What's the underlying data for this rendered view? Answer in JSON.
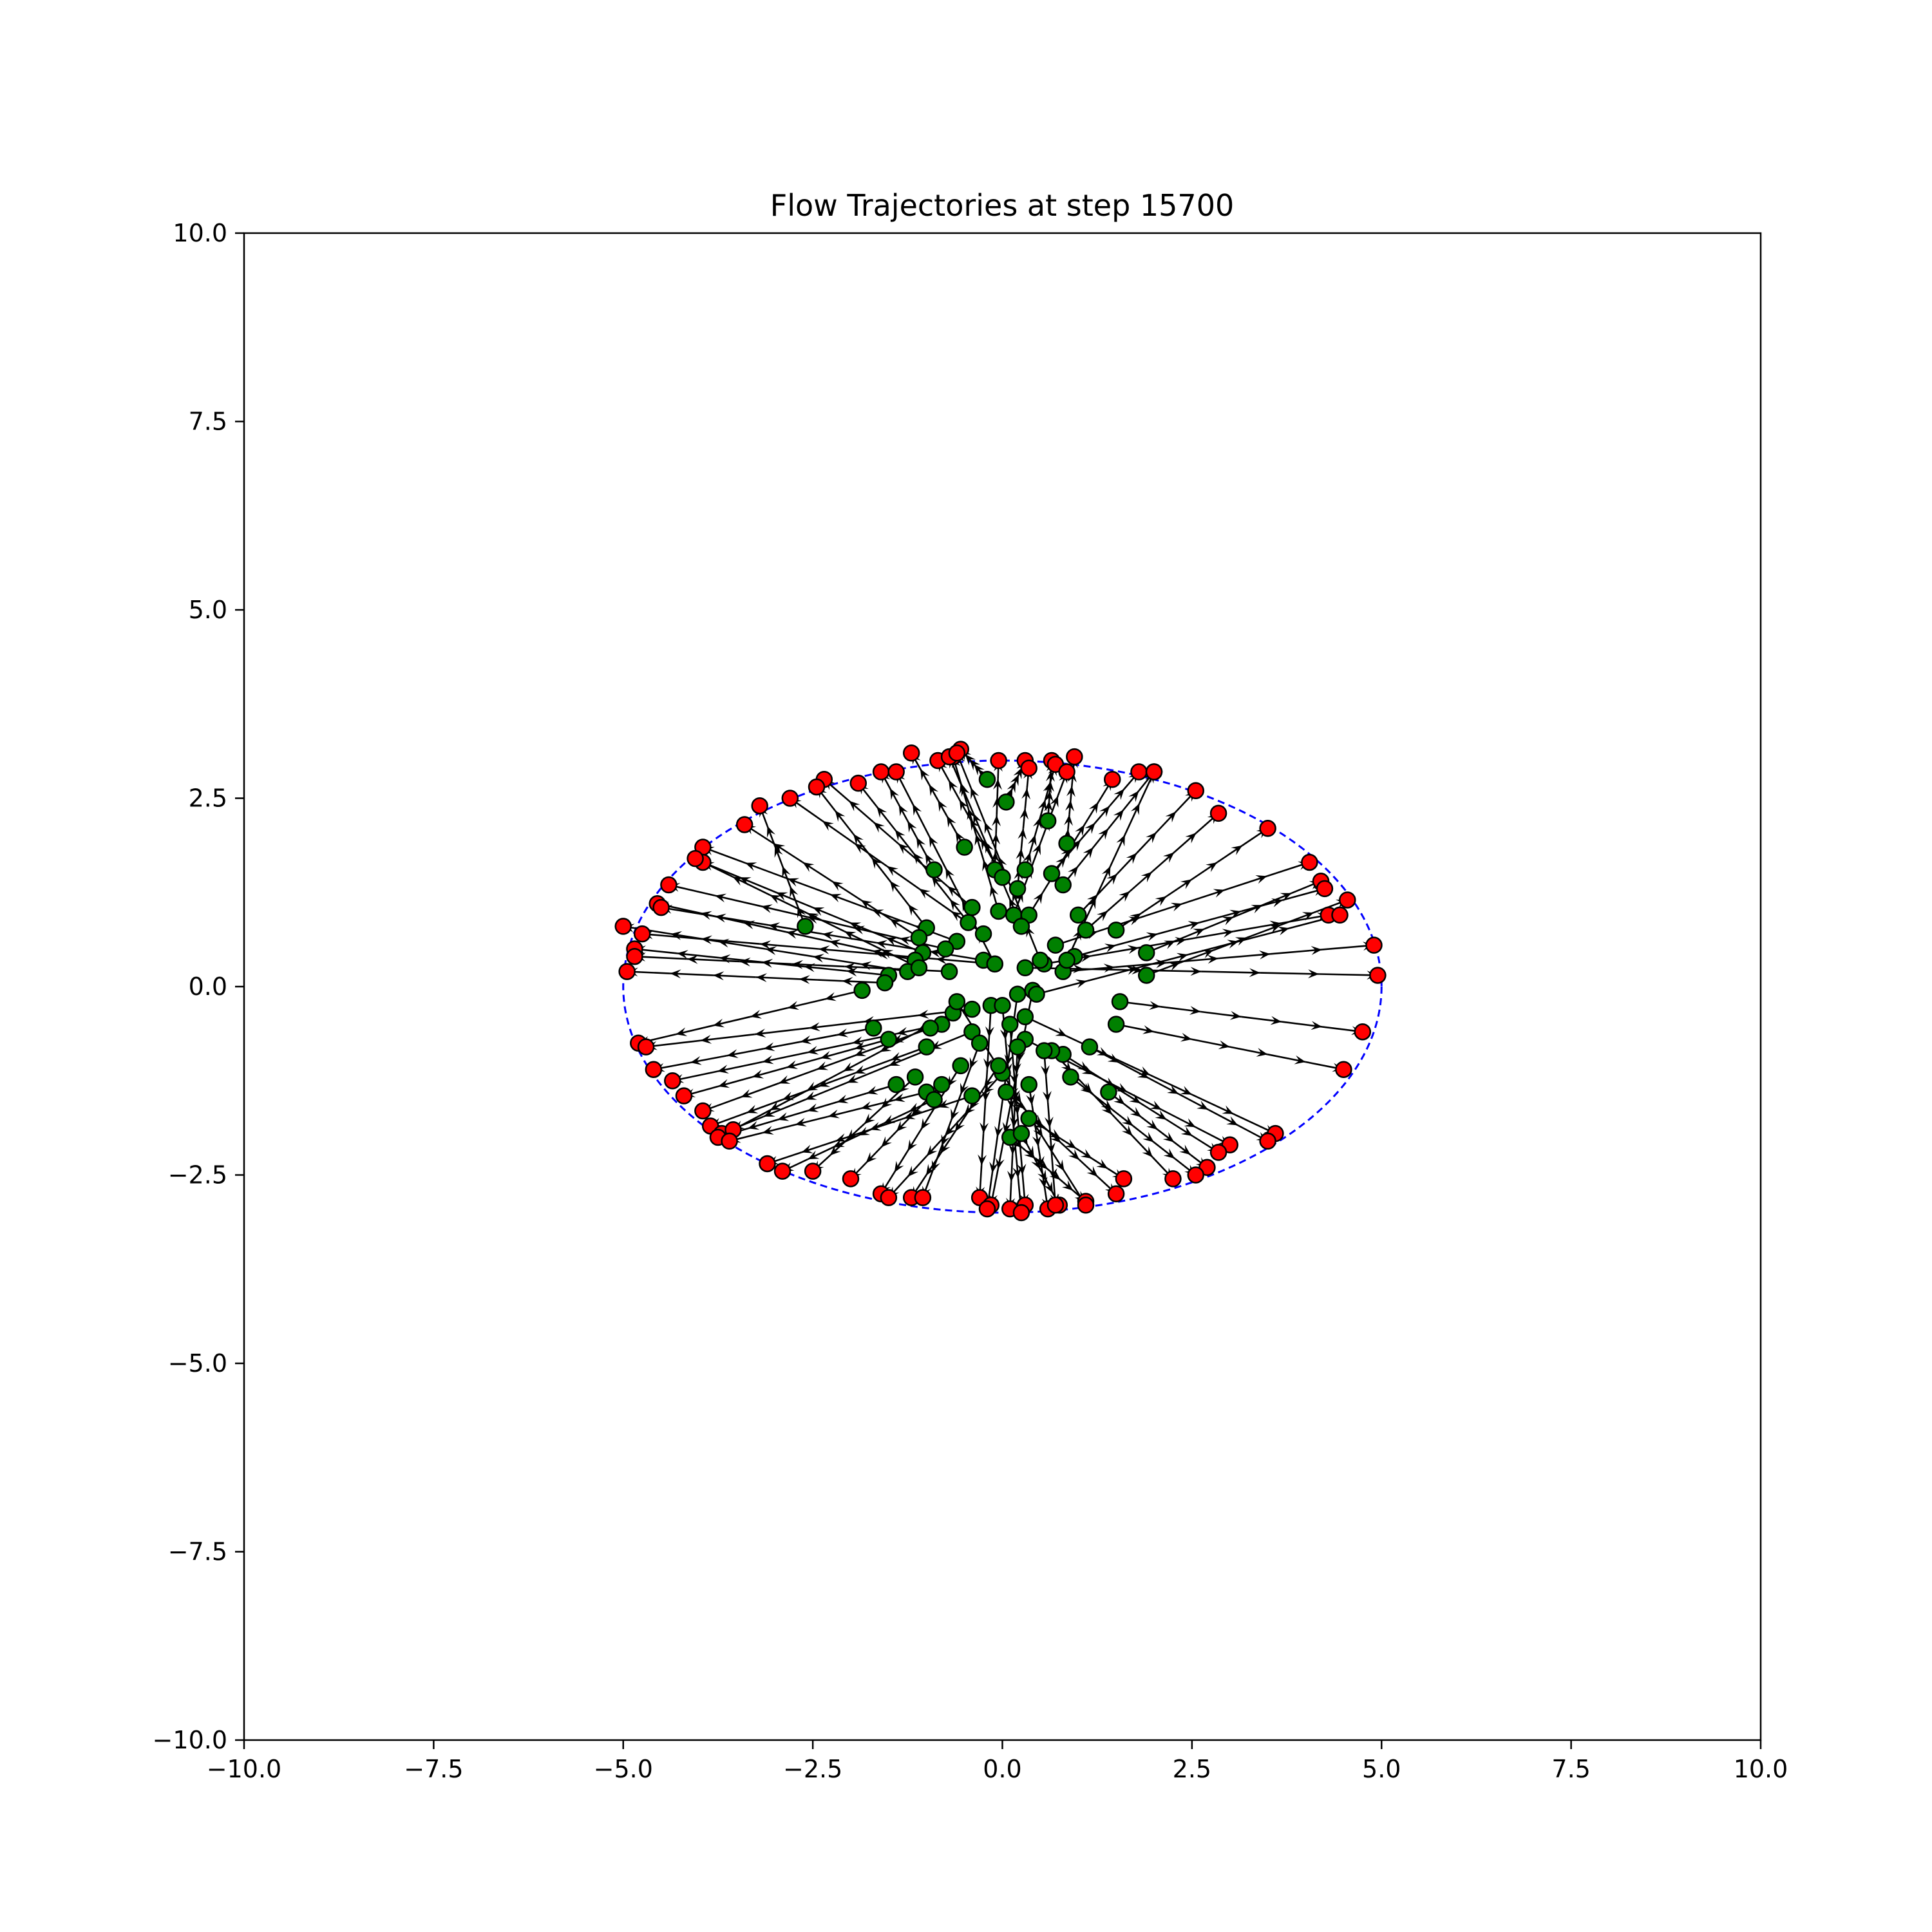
{
  "chart_data": {
    "type": "scatter",
    "title": "Flow Trajectories at step 15700",
    "xlabel": "",
    "ylabel": "",
    "xlim": [
      -10,
      10
    ],
    "ylim": [
      -10,
      10
    ],
    "xticks": [
      -10,
      -7.5,
      -5,
      -2.5,
      0,
      2.5,
      5,
      7.5,
      10
    ],
    "yticks": [
      -10,
      -7.5,
      -5,
      -2.5,
      0,
      2.5,
      5,
      7.5,
      10
    ],
    "xtick_labels": [
      "−10.0",
      "−7.5",
      "−5.0",
      "−2.5",
      "0.0",
      "2.5",
      "5.0",
      "7.5",
      "10.0"
    ],
    "ytick_labels": [
      "−10.0",
      "−7.5",
      "−5.0",
      "−2.5",
      "0.0",
      "2.5",
      "5.0",
      "7.5",
      "10.0"
    ],
    "grid": false,
    "colors": {
      "start": "#008000",
      "end": "#ff0000",
      "arrow": "#000000",
      "ellipse": "#0000ff"
    },
    "ellipse": {
      "center": [
        0,
        0
      ],
      "rx": 5,
      "ry": 3,
      "style": "dashed"
    },
    "arrow_steps": 6,
    "trajectories": [
      {
        "start": [
          -0.2,
          2.75
        ],
        "end": [
          -0.55,
          3.15
        ]
      },
      {
        "start": [
          0.05,
          2.45
        ],
        "end": [
          0.3,
          3.0
        ]
      },
      {
        "start": [
          0.6,
          2.2
        ],
        "end": [
          0.65,
          3.0
        ]
      },
      {
        "start": [
          0.85,
          1.9
        ],
        "end": [
          0.95,
          3.05
        ]
      },
      {
        "start": [
          -0.5,
          1.85
        ],
        "end": [
          -1.2,
          3.1
        ]
      },
      {
        "start": [
          -0.1,
          1.55
        ],
        "end": [
          -0.05,
          3.0
        ]
      },
      {
        "start": [
          0.3,
          1.55
        ],
        "end": [
          0.7,
          2.95
        ]
      },
      {
        "start": [
          0.65,
          1.5
        ],
        "end": [
          1.8,
          2.85
        ]
      },
      {
        "start": [
          -0.9,
          1.55
        ],
        "end": [
          -1.6,
          2.85
        ]
      },
      {
        "start": [
          0.0,
          1.45
        ],
        "end": [
          -0.85,
          3.0
        ]
      },
      {
        "start": [
          0.2,
          1.3
        ],
        "end": [
          0.35,
          2.9
        ]
      },
      {
        "start": [
          0.8,
          1.35
        ],
        "end": [
          2.0,
          2.85
        ]
      },
      {
        "start": [
          -0.4,
          1.05
        ],
        "end": [
          -2.35,
          2.75
        ]
      },
      {
        "start": [
          0.15,
          0.95
        ],
        "end": [
          0.85,
          2.85
        ]
      },
      {
        "start": [
          -0.05,
          1.0
        ],
        "end": [
          -0.65,
          3.05
        ]
      },
      {
        "start": [
          0.35,
          0.95
        ],
        "end": [
          1.45,
          2.75
        ]
      },
      {
        "start": [
          -0.45,
          0.85
        ],
        "end": [
          -1.9,
          2.7
        ]
      },
      {
        "start": [
          0.25,
          0.8
        ],
        "end": [
          -0.7,
          3.05
        ]
      },
      {
        "start": [
          1.0,
          0.95
        ],
        "end": [
          2.55,
          2.6
        ]
      },
      {
        "start": [
          -0.25,
          0.7
        ],
        "end": [
          -2.8,
          2.5
        ]
      },
      {
        "start": [
          1.1,
          0.75
        ],
        "end": [
          2.85,
          2.3
        ]
      },
      {
        "start": [
          -1.0,
          0.78
        ],
        "end": [
          -2.45,
          2.65
        ]
      },
      {
        "start": [
          1.5,
          0.75
        ],
        "end": [
          3.5,
          2.1
        ]
      },
      {
        "start": [
          -2.6,
          0.8
        ],
        "end": [
          -3.2,
          2.4
        ]
      },
      {
        "start": [
          -1.1,
          0.65
        ],
        "end": [
          -3.4,
          2.15
        ]
      },
      {
        "start": [
          0.7,
          0.55
        ],
        "end": [
          4.05,
          1.65
        ]
      },
      {
        "start": [
          1.9,
          0.45
        ],
        "end": [
          4.2,
          1.4
        ]
      },
      {
        "start": [
          -0.6,
          0.6
        ],
        "end": [
          -3.95,
          1.85
        ]
      },
      {
        "start": [
          -1.05,
          0.45
        ],
        "end": [
          -3.95,
          1.65
        ]
      },
      {
        "start": [
          0.95,
          0.4
        ],
        "end": [
          4.25,
          1.3
        ]
      },
      {
        "start": [
          -0.75,
          0.5
        ],
        "end": [
          -4.4,
          1.35
        ]
      },
      {
        "start": [
          1.9,
          0.15
        ],
        "end": [
          4.55,
          1.15
        ]
      },
      {
        "start": [
          -1.15,
          0.35
        ],
        "end": [
          -4.55,
          1.1
        ]
      },
      {
        "start": [
          0.55,
          0.3
        ],
        "end": [
          4.3,
          0.95
        ]
      },
      {
        "start": [
          -0.25,
          0.35
        ],
        "end": [
          -4.5,
          1.05
        ]
      },
      {
        "start": [
          -1.25,
          0.2
        ],
        "end": [
          -5.0,
          0.8
        ]
      },
      {
        "start": [
          0.8,
          0.2
        ],
        "end": [
          4.9,
          0.55
        ]
      },
      {
        "start": [
          -0.1,
          0.3
        ],
        "end": [
          -4.75,
          0.7
        ]
      },
      {
        "start": [
          -1.5,
          0.15
        ],
        "end": [
          -4.85,
          0.5
        ]
      },
      {
        "start": [
          0.3,
          0.25
        ],
        "end": [
          4.95,
          0.15
        ]
      },
      {
        "start": [
          -0.7,
          0.2
        ],
        "end": [
          -4.85,
          0.4
        ]
      },
      {
        "start": [
          -1.55,
          0.05
        ],
        "end": [
          -4.95,
          0.2
        ]
      },
      {
        "start": [
          -1.85,
          -0.05
        ],
        "end": [
          -4.8,
          -0.75
        ]
      },
      {
        "start": [
          1.55,
          -0.2
        ],
        "end": [
          4.75,
          -0.6
        ]
      },
      {
        "start": [
          -0.4,
          -0.3
        ],
        "end": [
          -4.7,
          -0.8
        ]
      },
      {
        "start": [
          1.5,
          -0.5
        ],
        "end": [
          4.5,
          -1.1
        ]
      },
      {
        "start": [
          -1.7,
          -0.55
        ],
        "end": [
          -4.6,
          -1.1
        ]
      },
      {
        "start": [
          -0.8,
          -0.5
        ],
        "end": [
          -4.35,
          -1.25
        ]
      },
      {
        "start": [
          0.3,
          -0.4
        ],
        "end": [
          3.6,
          -1.95
        ]
      },
      {
        "start": [
          -1.5,
          -0.7
        ],
        "end": [
          -4.2,
          -1.45
        ]
      },
      {
        "start": [
          -0.95,
          -0.55
        ],
        "end": [
          -3.95,
          -1.65
        ]
      },
      {
        "start": [
          1.15,
          -0.8
        ],
        "end": [
          3.5,
          -2.05
        ]
      },
      {
        "start": [
          -1.0,
          -0.8
        ],
        "end": [
          -3.85,
          -1.85
        ]
      },
      {
        "start": [
          -0.4,
          -0.6
        ],
        "end": [
          -3.7,
          -1.95
        ]
      },
      {
        "start": [
          0.3,
          -0.7
        ],
        "end": [
          3.0,
          -2.1
        ]
      },
      {
        "start": [
          -0.65,
          -0.35
        ],
        "end": [
          -3.55,
          -1.9
        ]
      },
      {
        "start": [
          0.8,
          -0.9
        ],
        "end": [
          2.85,
          -2.2
        ]
      },
      {
        "start": [
          -1.4,
          -1.3
        ],
        "end": [
          -3.75,
          -2.0
        ]
      },
      {
        "start": [
          1.4,
          -1.4
        ],
        "end": [
          2.7,
          -2.4
        ]
      },
      {
        "start": [
          -1.0,
          -1.4
        ],
        "end": [
          -3.6,
          -2.05
        ]
      },
      {
        "start": [
          0.9,
          -1.2
        ],
        "end": [
          2.55,
          -2.5
        ]
      },
      {
        "start": [
          -0.4,
          -1.45
        ],
        "end": [
          -3.1,
          -2.35
        ]
      },
      {
        "start": [
          0.65,
          -0.85
        ],
        "end": [
          2.25,
          -2.55
        ]
      },
      {
        "start": [
          -0.9,
          -1.5
        ],
        "end": [
          -2.9,
          -2.45
        ]
      },
      {
        "start": [
          0.35,
          -1.75
        ],
        "end": [
          1.6,
          -2.55
        ]
      },
      {
        "start": [
          -1.15,
          -1.2
        ],
        "end": [
          -2.5,
          -2.45
        ]
      },
      {
        "start": [
          0.05,
          -1.4
        ],
        "end": [
          1.5,
          -2.75
        ]
      },
      {
        "start": [
          -0.8,
          -1.3
        ],
        "end": [
          -2.0,
          -2.55
        ]
      },
      {
        "start": [
          0.1,
          -2.0
        ],
        "end": [
          1.1,
          -2.85
        ]
      },
      {
        "start": [
          -0.55,
          -1.05
        ],
        "end": [
          -1.6,
          -2.75
        ]
      },
      {
        "start": [
          0.25,
          -1.95
        ],
        "end": [
          0.75,
          -2.9
        ]
      },
      {
        "start": [
          0.0,
          -1.15
        ],
        "end": [
          -1.5,
          -2.8
        ]
      },
      {
        "start": [
          -0.05,
          -1.05
        ],
        "end": [
          -1.2,
          -2.8
        ]
      },
      {
        "start": [
          0.35,
          -1.3
        ],
        "end": [
          0.6,
          -2.95
        ]
      },
      {
        "start": [
          -0.3,
          -0.75
        ],
        "end": [
          -1.05,
          -2.8
        ]
      },
      {
        "start": [
          0.1,
          -0.5
        ],
        "end": [
          0.3,
          -2.9
        ]
      },
      {
        "start": [
          -0.15,
          -0.25
        ],
        "end": [
          -0.3,
          -2.8
        ]
      },
      {
        "start": [
          0.2,
          -0.8
        ],
        "end": [
          0.1,
          -2.95
        ]
      },
      {
        "start": [
          0.4,
          -0.05
        ],
        "end": [
          -0.15,
          -2.9
        ]
      },
      {
        "start": [
          0.0,
          -0.25
        ],
        "end": [
          0.25,
          -3.0
        ]
      },
      {
        "start": [
          0.2,
          -0.1
        ],
        "end": [
          -0.2,
          -2.95
        ]
      },
      {
        "start": [
          0.55,
          -0.85
        ],
        "end": [
          0.7,
          -2.9
        ]
      },
      {
        "start": [
          -0.6,
          -0.2
        ],
        "end": [
          1.1,
          -2.9
        ]
      },
      {
        "start": [
          0.5,
          0.35
        ],
        "end": [
          -0.6,
          3.1
        ]
      },
      {
        "start": [
          0.85,
          0.35
        ],
        "end": [
          2.0,
          2.85
        ]
      },
      {
        "start": [
          -0.1,
          0.3
        ],
        "end": [
          -1.4,
          2.85
        ]
      },
      {
        "start": [
          0.45,
          -0.1
        ],
        "end": [
          4.45,
          0.95
        ]
      },
      {
        "start": [
          -1.1,
          0.25
        ],
        "end": [
          -4.05,
          1.7
        ]
      }
    ]
  }
}
